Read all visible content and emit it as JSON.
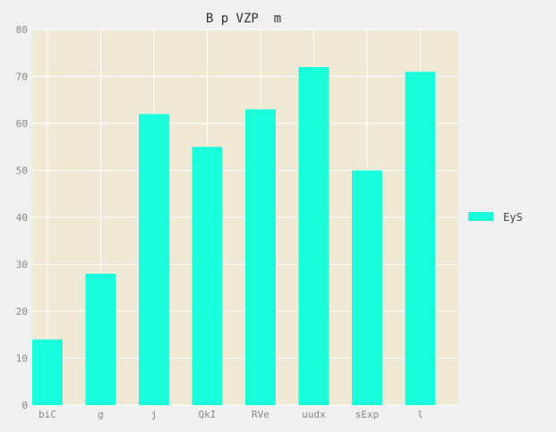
{
  "chart_data": {
    "type": "bar",
    "title": "B p VZP  m",
    "xlabel": "",
    "ylabel": "",
    "categories": [
      "biC",
      "g",
      "j",
      "QkI",
      "RVe",
      "uudx",
      "sExp",
      "l"
    ],
    "series": [
      {
        "name": "EyS",
        "values": [
          14,
          28,
          62,
          55,
          63,
          72,
          50,
          71
        ],
        "color": "#19ffdc"
      }
    ],
    "ylim": [
      0,
      80
    ],
    "yticks": [
      0,
      10,
      20,
      30,
      40,
      50,
      60,
      70,
      80
    ],
    "grid": true,
    "legend_position": "right",
    "plot_background": "#efe9d6",
    "page_background": "#f0f0f0",
    "grid_color": "#ffffff"
  }
}
